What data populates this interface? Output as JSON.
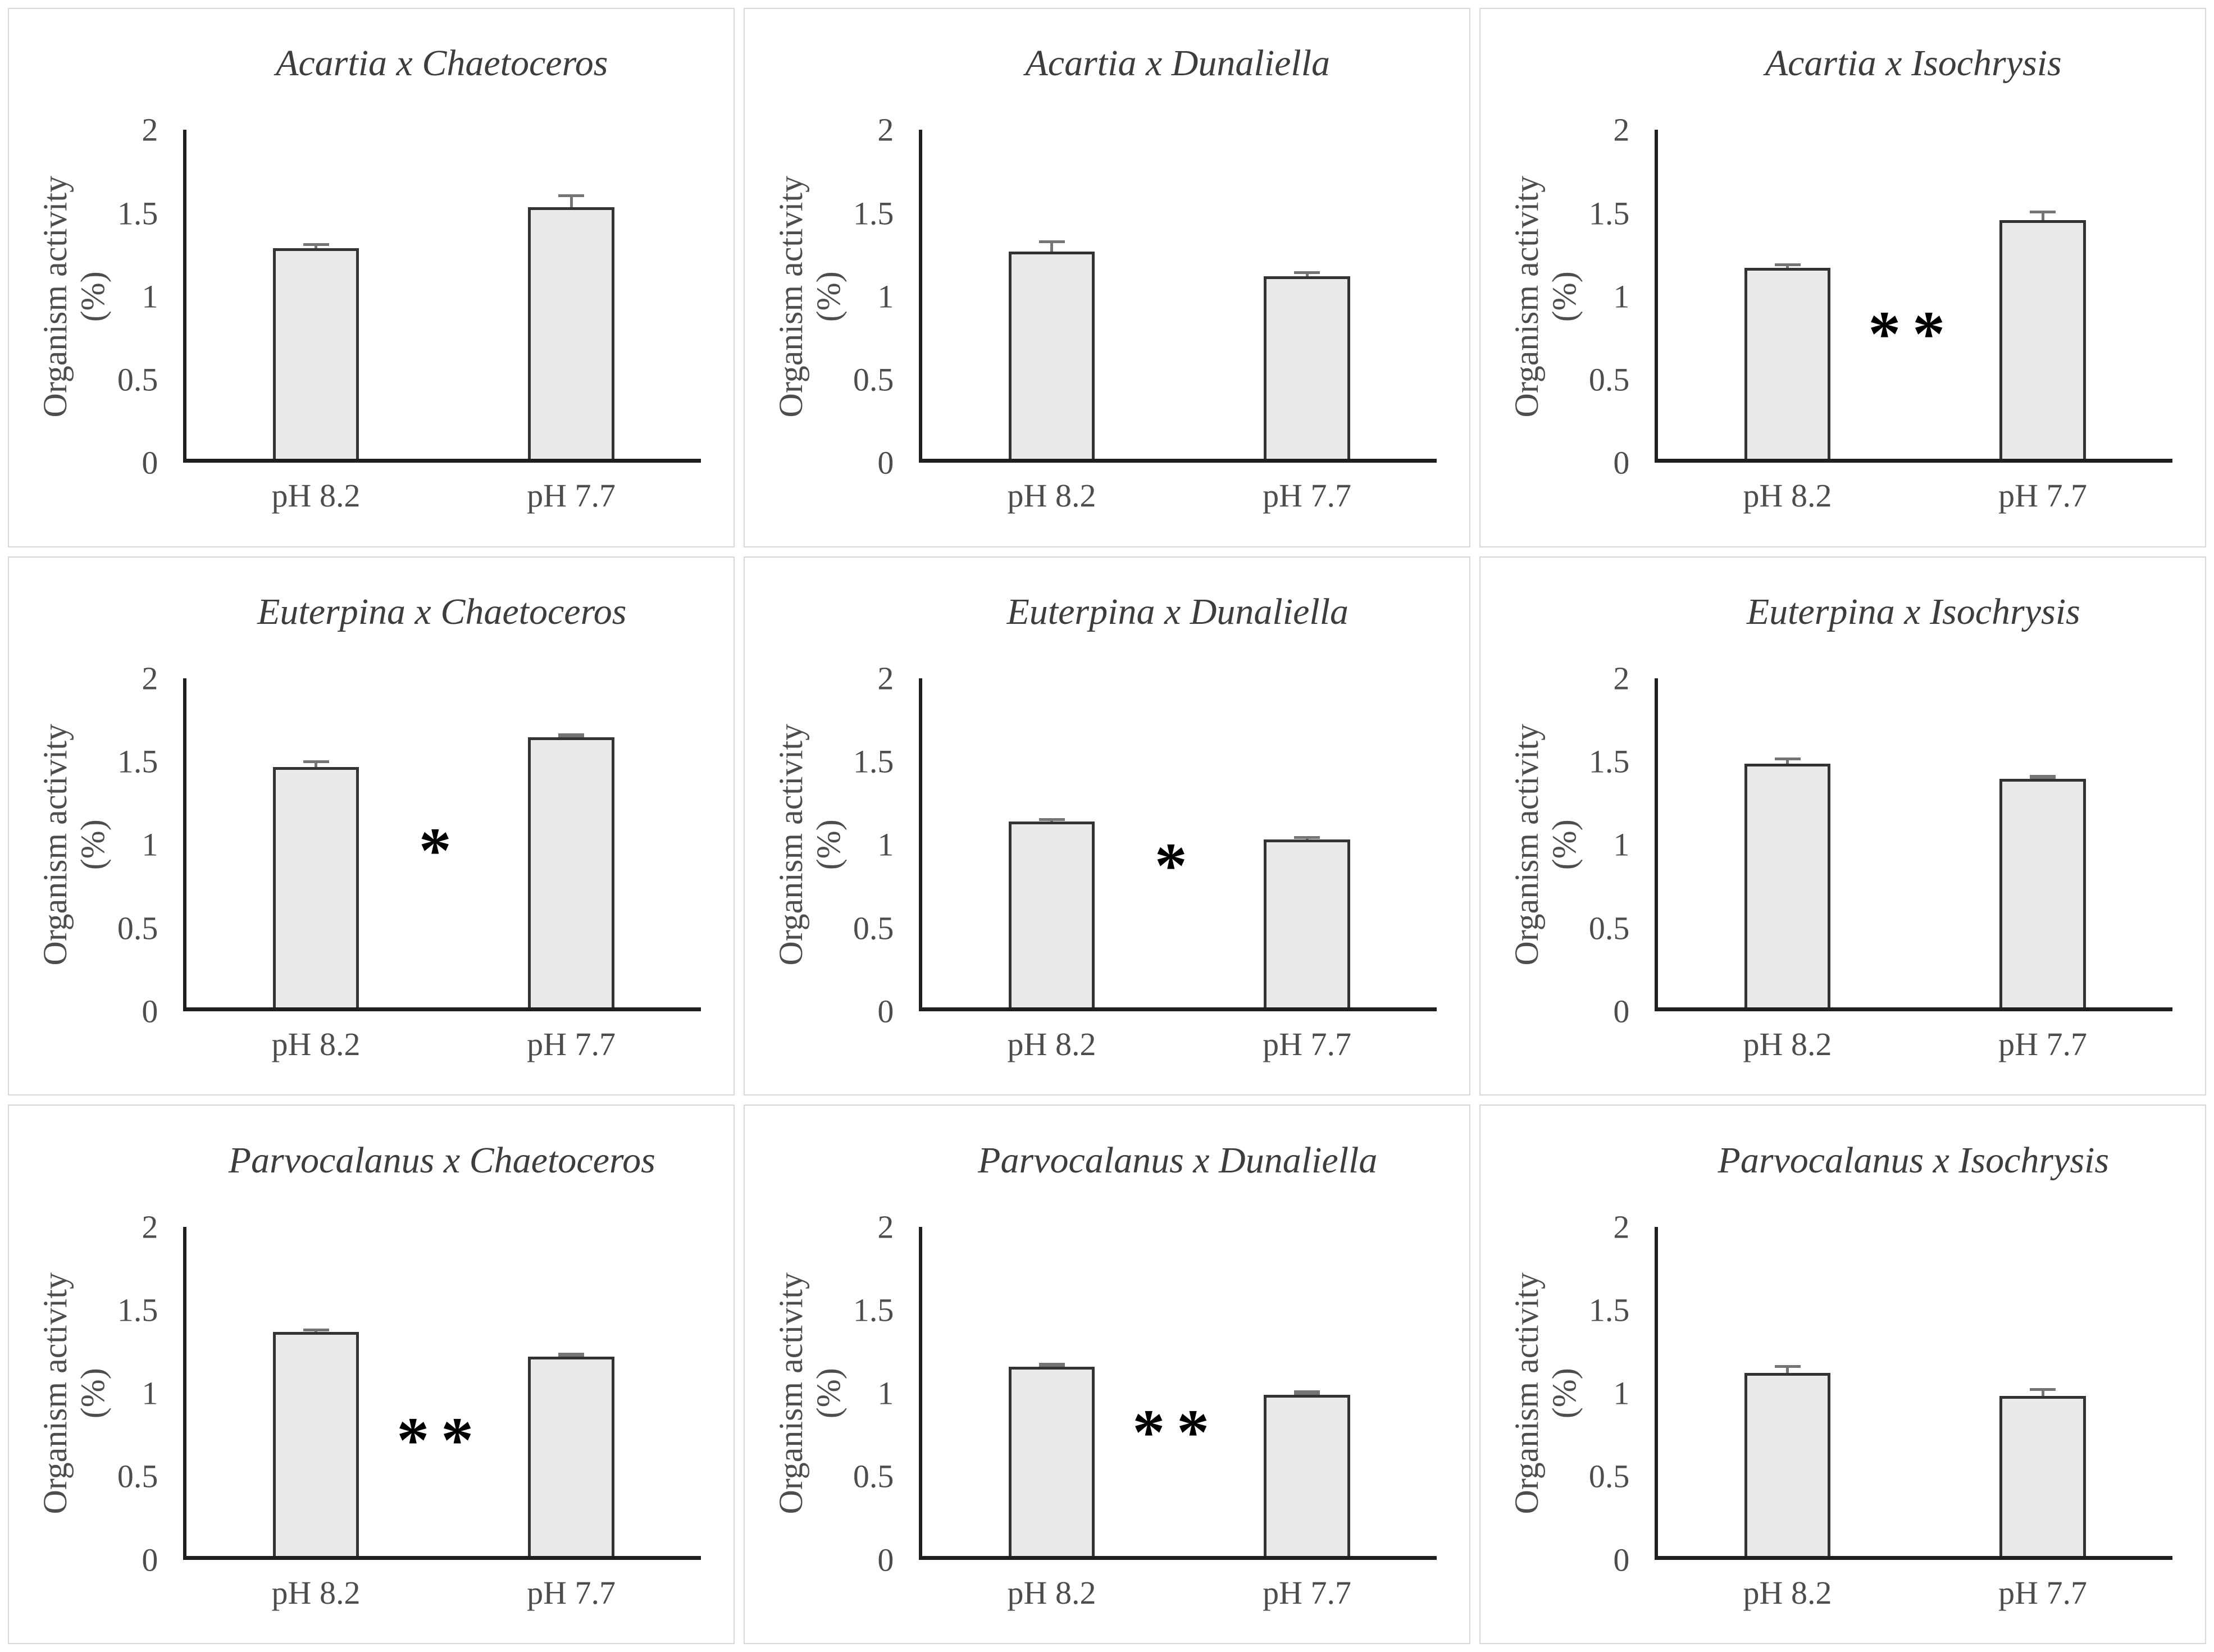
{
  "figure": {
    "y_axis_label_line1": "Organism activity",
    "y_axis_label_line2": "(%)",
    "y_ticks": [
      "2",
      "1.5",
      "1",
      "0.5",
      "0"
    ],
    "x_labels": [
      "pH 8.2",
      "pH 7.7"
    ],
    "colors": {
      "bar_fill": "#e9e9e9",
      "bar_border": "#333333",
      "error_bar": "#757575",
      "axis_line": "#1f1f1f",
      "text": "#4d4d4d",
      "annotation": "#000000",
      "panel_border": "#d8d8d8"
    }
  },
  "chart_data": [
    {
      "type": "bar",
      "title": "Acartia x Chaetoceros",
      "categories": [
        "pH 8.2",
        "pH 7.7"
      ],
      "values": [
        1.28,
        1.53
      ],
      "errors": [
        0.03,
        0.08
      ],
      "annotation": "",
      "annotation_y": 0,
      "ylabel": "Organism activity (%)",
      "ylim": [
        0,
        2
      ]
    },
    {
      "type": "bar",
      "title": "Acartia x Dunaliella",
      "categories": [
        "pH 8.2",
        "pH 7.7"
      ],
      "values": [
        1.26,
        1.11
      ],
      "errors": [
        0.07,
        0.03
      ],
      "annotation": "",
      "annotation_y": 0,
      "ylabel": "Organism activity (%)",
      "ylim": [
        0,
        2
      ]
    },
    {
      "type": "bar",
      "title": "Acartia x Isochrysis",
      "categories": [
        "pH 8.2",
        "pH 7.7"
      ],
      "values": [
        1.16,
        1.45
      ],
      "errors": [
        0.03,
        0.06
      ],
      "annotation": "**",
      "annotation_y": 0.74,
      "ylabel": "Organism activity (%)",
      "ylim": [
        0,
        2
      ]
    },
    {
      "type": "bar",
      "title": "Euterpina x Chaetoceros",
      "categories": [
        "pH 8.2",
        "pH 7.7"
      ],
      "values": [
        1.46,
        1.64
      ],
      "errors": [
        0.04,
        0.01
      ],
      "annotation": "*",
      "annotation_y": 0.93,
      "ylabel": "Organism activity (%)",
      "ylim": [
        0,
        2
      ]
    },
    {
      "type": "bar",
      "title": "Euterpina x Dunaliella",
      "categories": [
        "pH 8.2",
        "pH 7.7"
      ],
      "values": [
        1.13,
        1.02
      ],
      "errors": [
        0.02,
        0.02
      ],
      "annotation": "*",
      "annotation_y": 0.84,
      "ylabel": "Organism activity (%)",
      "ylim": [
        0,
        2
      ]
    },
    {
      "type": "bar",
      "title": "Euterpina x Isochrysis",
      "categories": [
        "pH 8.2",
        "pH 7.7"
      ],
      "values": [
        1.48,
        1.39
      ],
      "errors": [
        0.04,
        0.01
      ],
      "annotation": "",
      "annotation_y": 0,
      "ylabel": "Organism activity (%)",
      "ylim": [
        0,
        2
      ]
    },
    {
      "type": "bar",
      "title": "Parvocalanus x Chaetoceros",
      "categories": [
        "pH 8.2",
        "pH 7.7"
      ],
      "values": [
        1.36,
        1.21
      ],
      "errors": [
        0.02,
        0.01
      ],
      "annotation": "**",
      "annotation_y": 0.68,
      "ylabel": "Organism activity (%)",
      "ylim": [
        0,
        2
      ]
    },
    {
      "type": "bar",
      "title": "Parvocalanus x Dunaliella",
      "categories": [
        "pH 8.2",
        "pH 7.7"
      ],
      "values": [
        1.15,
        0.98
      ],
      "errors": [
        0.01,
        0.01
      ],
      "annotation": "**",
      "annotation_y": 0.73,
      "ylabel": "Organism activity (%)",
      "ylim": [
        0,
        2
      ]
    },
    {
      "type": "bar",
      "title": "Parvocalanus x Isochrysis",
      "categories": [
        "pH 8.2",
        "pH 7.7"
      ],
      "values": [
        1.11,
        0.97
      ],
      "errors": [
        0.05,
        0.05
      ],
      "annotation": "",
      "annotation_y": 0,
      "ylabel": "Organism activity (%)",
      "ylim": [
        0,
        2
      ]
    }
  ]
}
